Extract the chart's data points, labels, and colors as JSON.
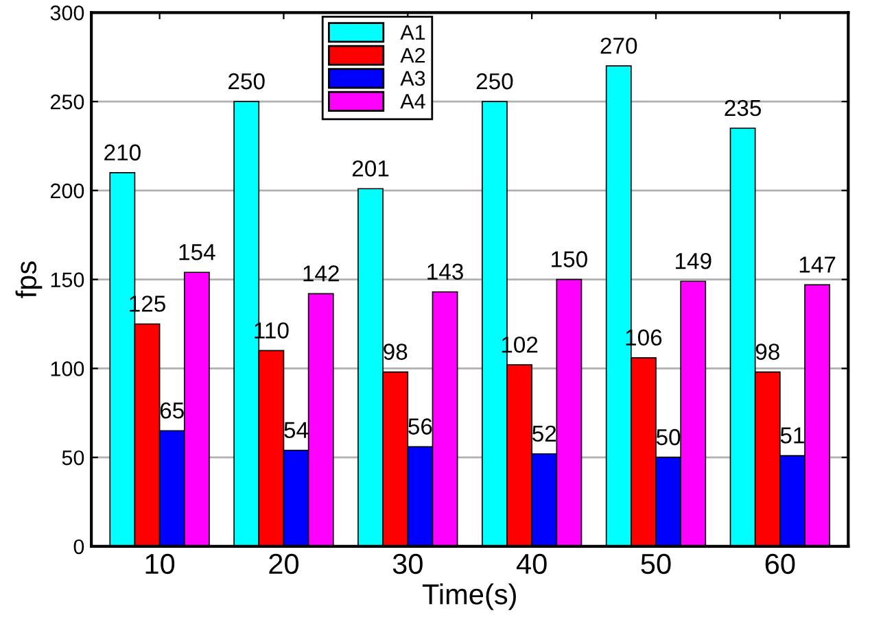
{
  "chart_data": {
    "type": "bar",
    "xlabel": "Time(s)",
    "ylabel": "fps",
    "categories": [
      "10",
      "20",
      "30",
      "40",
      "50",
      "60"
    ],
    "series": [
      {
        "name": "A1",
        "color": "#00ffff",
        "values": [
          210,
          250,
          201,
          250,
          270,
          235
        ]
      },
      {
        "name": "A2",
        "color": "#ff0000",
        "values": [
          125,
          110,
          98,
          102,
          106,
          98
        ]
      },
      {
        "name": "A3",
        "color": "#0000ff",
        "values": [
          65,
          54,
          56,
          52,
          50,
          51
        ]
      },
      {
        "name": "A4",
        "color": "#ff00ff",
        "values": [
          154,
          142,
          143,
          150,
          149,
          147
        ]
      }
    ],
    "ylim": [
      0,
      300
    ],
    "yticks": [
      0,
      50,
      100,
      150,
      200,
      250,
      300
    ],
    "grid": "y",
    "legend": "top",
    "data_labels": true
  }
}
